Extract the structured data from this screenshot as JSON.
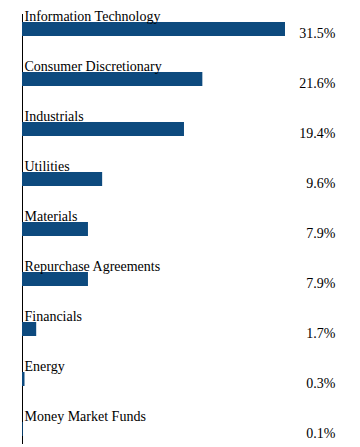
{
  "chart_data": {
    "type": "bar",
    "orientation": "horizontal",
    "categories": [
      "Information Technology",
      "Consumer Discretionary",
      "Industrials",
      "Utilities",
      "Materials",
      "Repurchase Agreements",
      "Financials",
      "Energy",
      "Money Market Funds"
    ],
    "values": [
      31.5,
      21.6,
      19.4,
      9.6,
      7.9,
      7.9,
      1.7,
      0.3,
      0.1
    ],
    "value_labels": [
      "31.5%",
      "21.6%",
      "19.4%",
      "9.6%",
      "7.9%",
      "7.9%",
      "1.7%",
      "0.3%",
      "0.1%"
    ],
    "color": "#0d4a7e",
    "data_labels": true,
    "tick_labels": false,
    "grid": false
  }
}
